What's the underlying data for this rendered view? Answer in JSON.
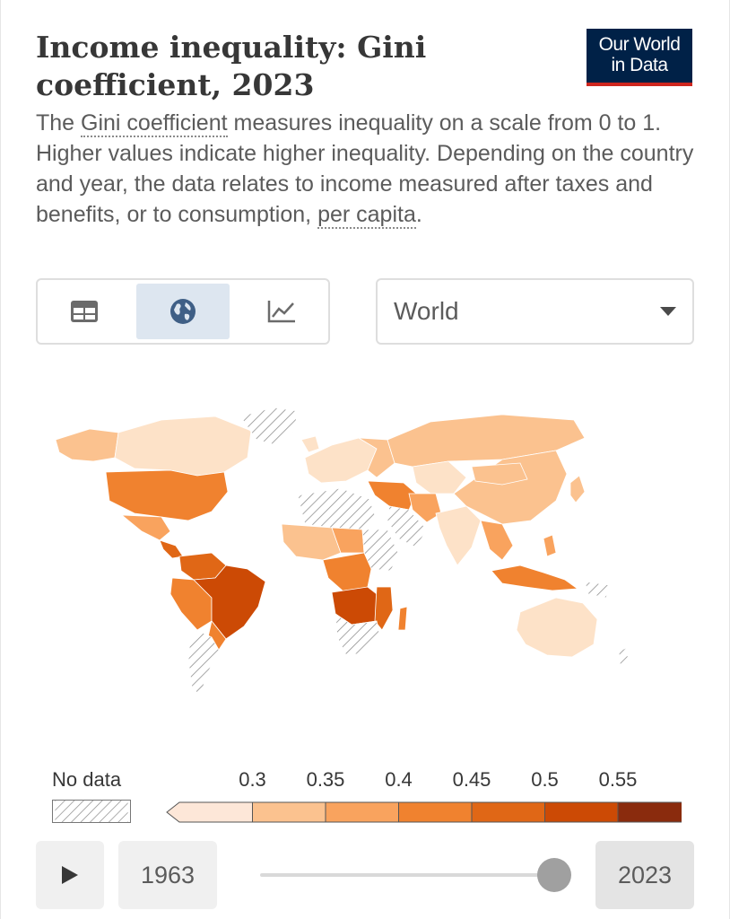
{
  "header": {
    "title": "Income inequality: Gini coefficient, 2023",
    "logo_line1": "Our World",
    "logo_line2": "in Data",
    "subtitle_parts": {
      "p1": "The ",
      "link1": "Gini coefficient",
      "p2": " measures inequality on a scale from 0 to 1. Higher values indicate higher inequality. Depending on the country and year, the data relates to income measured after taxes and benefits, or to consumption, ",
      "link2": "per capita",
      "p3": "."
    }
  },
  "view_tabs": [
    {
      "icon": "table-icon",
      "active": false
    },
    {
      "icon": "globe-icon",
      "active": true
    },
    {
      "icon": "line-chart-icon",
      "active": false
    }
  ],
  "region_select": {
    "value": "World"
  },
  "legend": {
    "no_data_label": "No data",
    "ticks": [
      "0.3",
      "0.35",
      "0.4",
      "0.45",
      "0.5",
      "0.55"
    ],
    "bin_colors": [
      "#fde7d8",
      "#fbc28f",
      "#f9a35e",
      "#f0822f",
      "#e06716",
      "#cc4a05",
      "#8a2b0d"
    ]
  },
  "timeline": {
    "start_year": "1963",
    "end_year": "2023",
    "position": 1.0
  },
  "colors": {
    "title": "#373737",
    "text": "#5b5b5b",
    "logo_bg": "#002147",
    "logo_accent": "#ce261e",
    "active_tab": "#dde6f0"
  }
}
